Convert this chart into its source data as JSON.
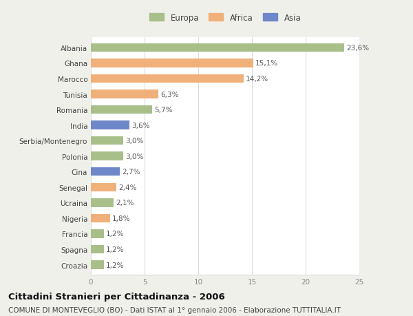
{
  "countries": [
    "Albania",
    "Ghana",
    "Marocco",
    "Tunisia",
    "Romania",
    "India",
    "Serbia/Montenegro",
    "Polonia",
    "Cina",
    "Senegal",
    "Ucraina",
    "Nigeria",
    "Francia",
    "Spagna",
    "Croazia"
  ],
  "values": [
    23.6,
    15.1,
    14.2,
    6.3,
    5.7,
    3.6,
    3.0,
    3.0,
    2.7,
    2.4,
    2.1,
    1.8,
    1.2,
    1.2,
    1.2
  ],
  "labels": [
    "23,6%",
    "15,1%",
    "14,2%",
    "6,3%",
    "5,7%",
    "3,6%",
    "3,0%",
    "3,0%",
    "2,7%",
    "2,4%",
    "2,1%",
    "1,8%",
    "1,2%",
    "1,2%",
    "1,2%"
  ],
  "continents": [
    "Europa",
    "Africa",
    "Africa",
    "Africa",
    "Europa",
    "Asia",
    "Europa",
    "Europa",
    "Asia",
    "Africa",
    "Europa",
    "Africa",
    "Europa",
    "Europa",
    "Europa"
  ],
  "continent_colors": {
    "Europa": "#a8bf8a",
    "Africa": "#f0b07a",
    "Asia": "#6e87c8"
  },
  "legend_labels": [
    "Europa",
    "Africa",
    "Asia"
  ],
  "legend_colors": [
    "#a8bf8a",
    "#f0b07a",
    "#6e87c8"
  ],
  "title": "Cittadini Stranieri per Cittadinanza - 2006",
  "subtitle": "COMUNE DI MONTEVEGLIO (BO) - Dati ISTAT al 1° gennaio 2006 - Elaborazione TUTTITALIA.IT",
  "xlim": [
    0,
    25
  ],
  "xticks": [
    0,
    5,
    10,
    15,
    20,
    25
  ],
  "bg_color": "#f0f0eb",
  "plot_bg_color": "#ffffff",
  "bar_height": 0.55,
  "label_fontsize": 7.5,
  "tick_fontsize": 7.5,
  "title_fontsize": 9.5,
  "subtitle_fontsize": 7.5
}
